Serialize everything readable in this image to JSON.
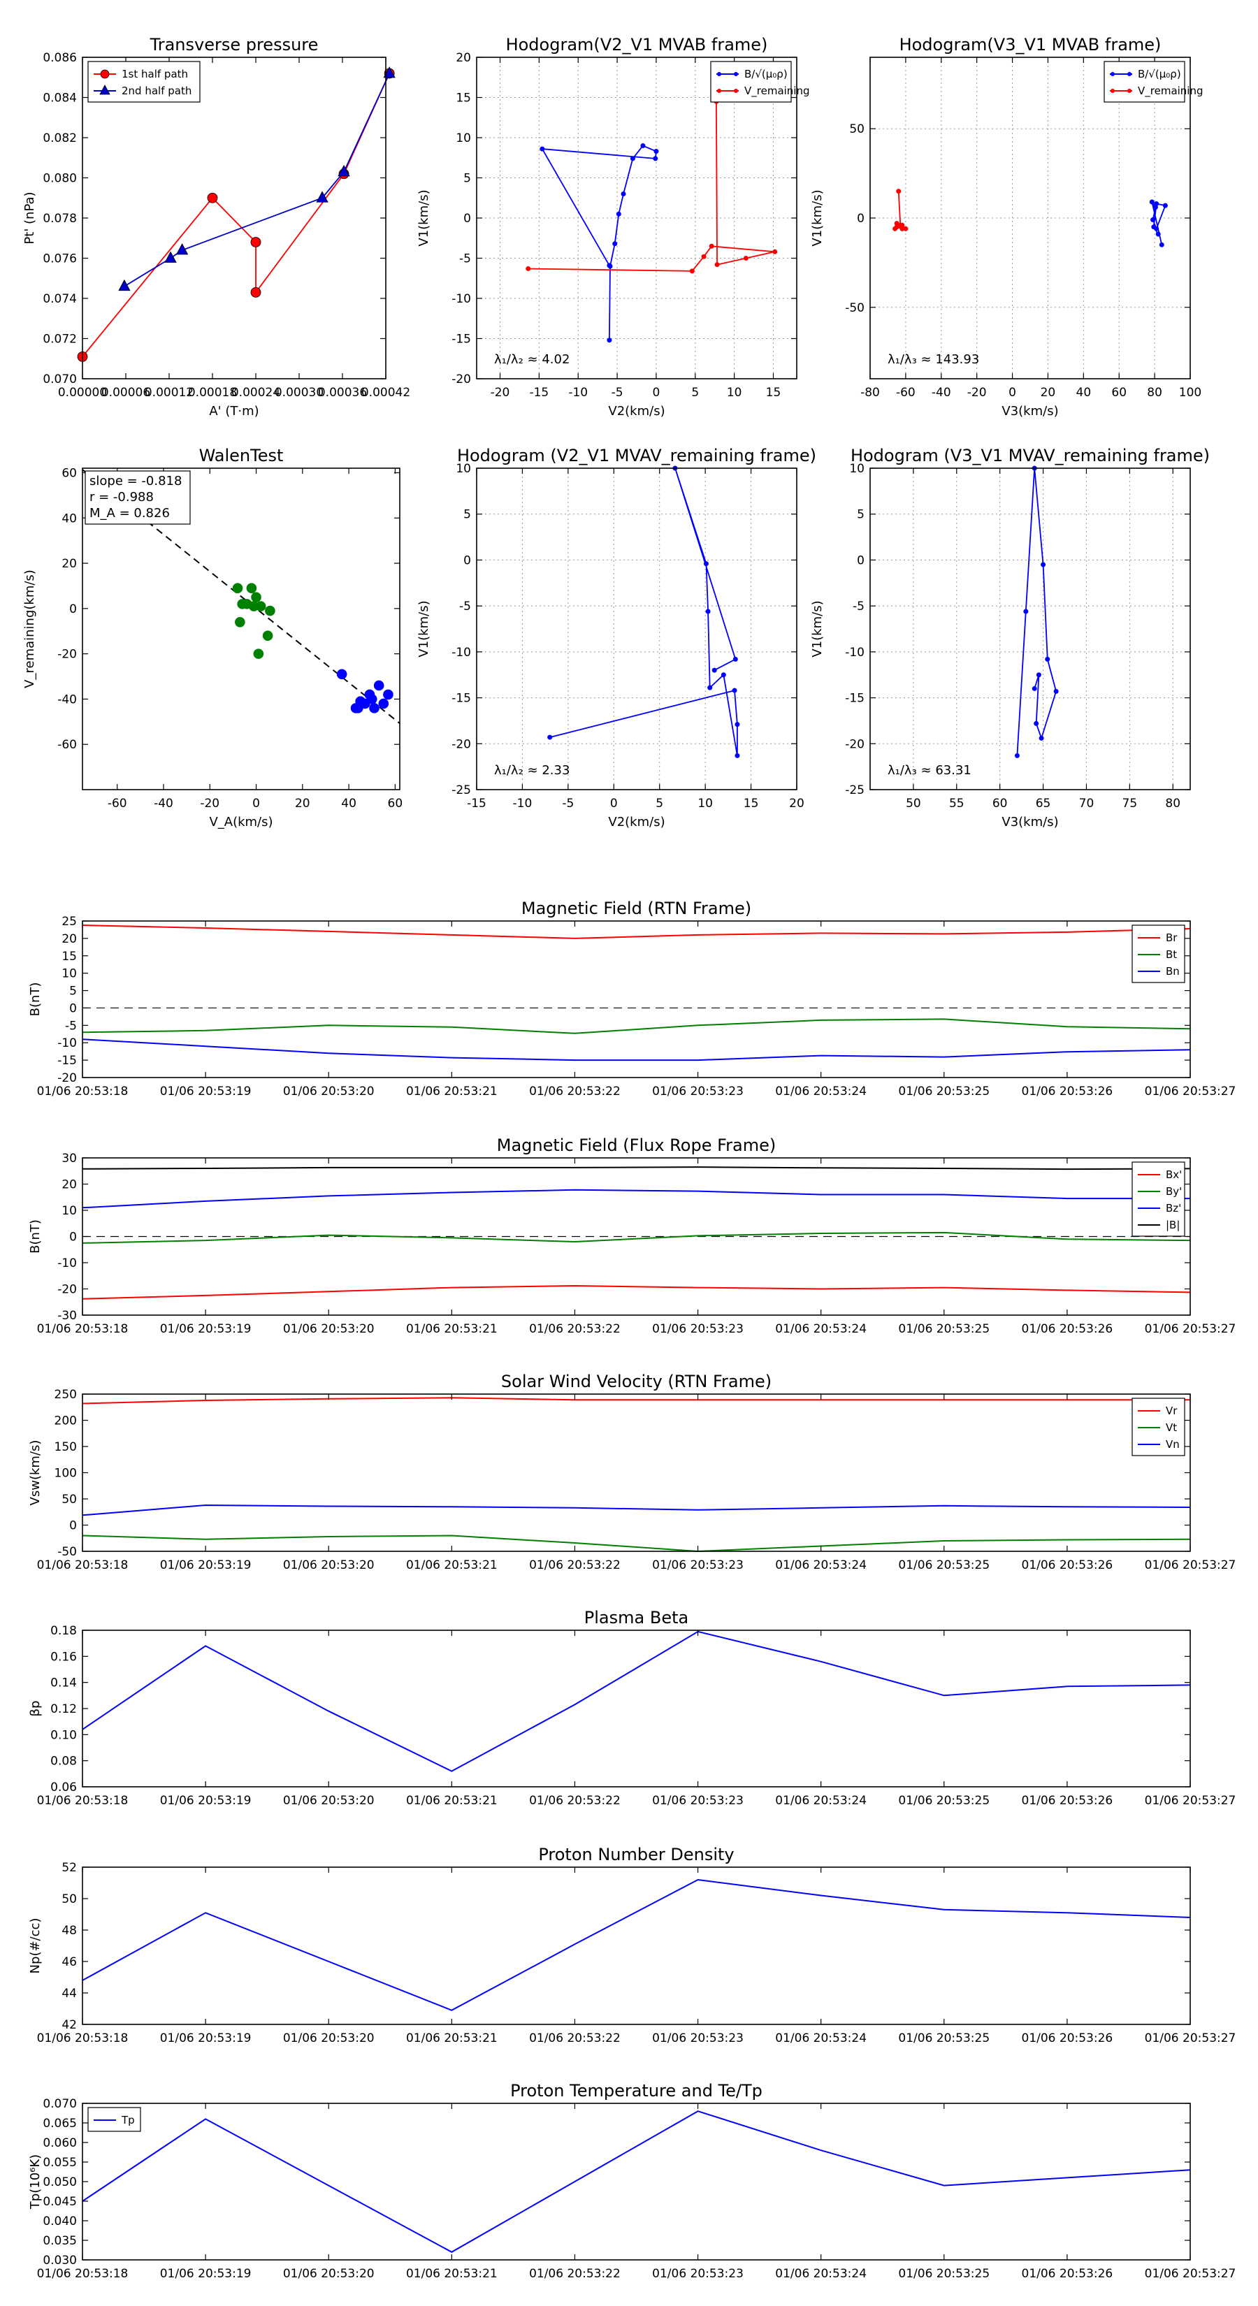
{
  "chart_data": [
    {
      "type": "line",
      "id": "tp",
      "title": "Transverse pressure",
      "xlabel": "A' (T·m)",
      "ylabel": "Pt' (nPa)",
      "xlim": [
        0.0,
        0.00042
      ],
      "ylim": [
        0.07,
        0.086
      ],
      "xticks": [
        0.0,
        6e-05,
        0.00012,
        0.00018,
        0.00024,
        0.0003,
        0.00036,
        0.00042
      ],
      "xtick_labels": [
        "0.00000",
        "0.00006",
        "0.00012",
        "0.00018",
        "0.00024",
        "0.00030",
        "0.00036",
        "0.00042"
      ],
      "yticks": [
        0.07,
        0.072,
        0.074,
        0.076,
        0.078,
        0.08,
        0.082,
        0.084,
        0.086
      ],
      "ytick_labels": [
        "0.070",
        "0.072",
        "0.074",
        "0.076",
        "0.078",
        "0.080",
        "0.082",
        "0.084",
        "0.086"
      ],
      "legend_position": "top-left",
      "series": [
        {
          "name": "1st half path",
          "color": "#ff0000",
          "marker": "circle",
          "x": [
            0.0,
            0.00018,
            0.00024,
            0.00024,
            0.000362,
            0.000425
          ],
          "y": [
            0.0711,
            0.079,
            0.0768,
            0.0743,
            0.0802,
            0.0852
          ]
        },
        {
          "name": "2nd half path",
          "color": "#0000cc",
          "marker": "triangle",
          "x": [
            0.000425,
            0.000362,
            0.000332,
            0.000138,
            0.000122,
            5.8e-05
          ],
          "y": [
            0.0852,
            0.0803,
            0.079,
            0.0764,
            0.076,
            0.0746
          ]
        }
      ]
    },
    {
      "type": "line",
      "id": "h1",
      "title": "Hodogram(V2_V1 MVAB frame)",
      "xlabel": "V2(km/s)",
      "ylabel": "V1(km/s)",
      "xlim": [
        -23,
        18
      ],
      "ylim": [
        -20,
        20
      ],
      "xticks": [
        -20,
        -15,
        -10,
        -5,
        0,
        5,
        10,
        15
      ],
      "yticks": [
        -20,
        -15,
        -10,
        -5,
        0,
        5,
        10,
        15,
        20
      ],
      "legend_position": "top-right",
      "annotation": "λ₁/λ₂ ≈ 4.02",
      "series": [
        {
          "name": "B/√(μ₀ρ)",
          "color": "#0000ff",
          "x": [
            -6.0,
            -5.9,
            -5.3,
            -4.8,
            -4.2,
            -3.0,
            -1.7,
            0.0,
            -0.1,
            -14.6,
            -6.0
          ],
          "y": [
            -15.2,
            -6.0,
            -3.2,
            0.5,
            3.0,
            7.4,
            9.0,
            8.3,
            7.4,
            8.6,
            -5.9
          ]
        },
        {
          "name": "V_remaining",
          "color": "#ff0000",
          "x": [
            -16.4,
            4.6,
            6.1,
            7.1,
            15.2,
            11.5,
            7.8,
            7.7
          ],
          "y": [
            -6.3,
            -6.6,
            -4.8,
            -3.5,
            -4.2,
            -5.0,
            -5.8,
            14.5
          ]
        }
      ]
    },
    {
      "type": "line",
      "id": "h2",
      "title": "Hodogram(V3_V1 MVAB frame)",
      "xlabel": "V3(km/s)",
      "ylabel": "V1(km/s)",
      "xlim": [
        -80,
        100
      ],
      "ylim": [
        -90,
        90
      ],
      "xticks": [
        -80,
        -60,
        -40,
        -20,
        0,
        20,
        40,
        60,
        80,
        100
      ],
      "yticks": [
        -50,
        0,
        50
      ],
      "legend_position": "top-right",
      "annotation": "λ₁/λ₃ ≈ 143.93",
      "series": [
        {
          "name": "B/√(μ₀ρ)",
          "color": "#0000ff",
          "x": [
            84.0,
            78.5,
            80.5,
            79.0,
            81.0,
            86.0,
            81.0,
            79.5,
            82.0
          ],
          "y": [
            -15.0,
            9.0,
            6.0,
            -1.0,
            -6.0,
            7.0,
            8.0,
            -5.0,
            -9.0
          ]
        },
        {
          "name": "V_remaining",
          "color": "#ff0000",
          "x": [
            -64.0,
            -63.0,
            -66.0,
            -65.0,
            -62.0,
            -60.0,
            -65.0,
            -62.0
          ],
          "y": [
            15.0,
            -4.0,
            -6.0,
            -3.0,
            -4.0,
            -6.0,
            -5.0,
            -6.0
          ]
        }
      ]
    },
    {
      "type": "scatter",
      "id": "wt",
      "title": "WalenTest",
      "xlabel": "V_A(km/s)",
      "ylabel": "V_remaining(km/s)",
      "xlim": [
        -75,
        62
      ],
      "ylim": [
        -80,
        62
      ],
      "xticks": [
        -60,
        -40,
        -20,
        0,
        20,
        40,
        60
      ],
      "yticks": [
        -60,
        -40,
        -20,
        0,
        20,
        40,
        60
      ],
      "fit_line": {
        "slope": -0.818,
        "intercept": 0.0
      },
      "annotations": [
        "slope = -0.818",
        "r = -0.988",
        "M_A = 0.826"
      ],
      "series": [
        {
          "name": "green",
          "color": "#008000",
          "x": [
            -8,
            -6,
            -4,
            -2,
            -1,
            0,
            1,
            2,
            5,
            6,
            -7
          ],
          "y": [
            9,
            2,
            2,
            9,
            1,
            5,
            -20,
            1,
            -12,
            -1,
            -6
          ]
        },
        {
          "name": "blue",
          "color": "#0000ff",
          "x": [
            37,
            43,
            45,
            47,
            49,
            51,
            53,
            55,
            57,
            50,
            44
          ],
          "y": [
            -29,
            -44,
            -41,
            -42,
            -38,
            -44,
            -34,
            -42,
            -38,
            -40,
            -44
          ]
        }
      ]
    },
    {
      "type": "line",
      "id": "h3",
      "title": "Hodogram (V2_V1 MVAV_remaining frame)",
      "xlabel": "V2(km/s)",
      "ylabel": "V1(km/s)",
      "xlim": [
        -15,
        20
      ],
      "ylim": [
        -25,
        10
      ],
      "xticks": [
        -15,
        -10,
        -5,
        0,
        5,
        10,
        15,
        20
      ],
      "yticks": [
        -25,
        -20,
        -15,
        -10,
        -5,
        0,
        5,
        10
      ],
      "annotation": "λ₁/λ₂ ≈ 2.33",
      "series": [
        {
          "name": "V_remaining",
          "color": "#0000ff",
          "x": [
            -7.0,
            13.2,
            13.5,
            13.5,
            12.0,
            10.5,
            10.3,
            10.1,
            6.7,
            13.3,
            11.0
          ],
          "y": [
            -19.3,
            -14.2,
            -17.9,
            -21.3,
            -12.5,
            -13.9,
            -5.6,
            -0.4,
            10.0,
            -10.8,
            -12.0
          ]
        }
      ]
    },
    {
      "type": "line",
      "id": "h4",
      "title": "Hodogram (V3_V1 MVAV_remaining frame)",
      "xlabel": "V3(km/s)",
      "ylabel": "V1(km/s)",
      "xlim": [
        45,
        82
      ],
      "ylim": [
        -25,
        10
      ],
      "xticks": [
        50,
        55,
        60,
        65,
        70,
        75,
        80
      ],
      "yticks": [
        -25,
        -20,
        -15,
        -10,
        -5,
        0,
        5,
        10
      ],
      "annotation": "λ₁/λ₃ ≈ 63.31",
      "series": [
        {
          "name": "V_remaining",
          "color": "#0000ff",
          "x": [
            62.0,
            63.0,
            64.0,
            65.0,
            65.5,
            66.5,
            64.8,
            64.2,
            64.5,
            64.0
          ],
          "y": [
            -21.3,
            -5.6,
            10.0,
            -0.5,
            -10.8,
            -14.3,
            -19.4,
            -17.8,
            -12.5,
            -14.0
          ]
        }
      ]
    },
    {
      "type": "line",
      "id": "mf_rtn",
      "title": "Magnetic Field (RTN Frame)",
      "ylabel": "B(nT)",
      "ylim": [
        -20,
        25
      ],
      "yticks": [
        -20,
        -15,
        -10,
        -5,
        0,
        5,
        10,
        15,
        20,
        25
      ],
      "zero_line": true,
      "legend_position": "top-right",
      "x": [
        "01/06 20:53:18",
        "01/06 20:53:19",
        "01/06 20:53:20",
        "01/06 20:53:21",
        "01/06 20:53:22",
        "01/06 20:53:23",
        "01/06 20:53:24",
        "01/06 20:53:25",
        "01/06 20:53:26",
        "01/06 20:53:27"
      ],
      "series": [
        {
          "name": "Br",
          "color": "#ff0000",
          "values": [
            23.8,
            23.0,
            22.0,
            21.0,
            20.0,
            21.0,
            21.5,
            21.3,
            21.8,
            22.8
          ]
        },
        {
          "name": "Bt",
          "color": "#008000",
          "values": [
            -7.0,
            -6.5,
            -5.0,
            -5.5,
            -7.3,
            -5.0,
            -3.5,
            -3.2,
            -5.4,
            -6.0
          ]
        },
        {
          "name": "Bn",
          "color": "#0000ff",
          "values": [
            -9.0,
            -11.0,
            -13.0,
            -14.3,
            -15.0,
            -15.0,
            -13.7,
            -14.1,
            -12.6,
            -12.0
          ]
        }
      ]
    },
    {
      "type": "line",
      "id": "mf_fr",
      "title": "Magnetic Field (Flux Rope Frame)",
      "ylabel": "B(nT)",
      "ylim": [
        -30,
        30
      ],
      "yticks": [
        -30,
        -20,
        -10,
        0,
        10,
        20,
        30
      ],
      "zero_line": true,
      "legend_position": "top-right",
      "x": [
        "01/06 20:53:18",
        "01/06 20:53:19",
        "01/06 20:53:20",
        "01/06 20:53:21",
        "01/06 20:53:22",
        "01/06 20:53:23",
        "01/06 20:53:24",
        "01/06 20:53:25",
        "01/06 20:53:26",
        "01/06 20:53:27"
      ],
      "series": [
        {
          "name": "Bx'",
          "color": "#ff0000",
          "values": [
            -23.8,
            -22.5,
            -21.0,
            -19.5,
            -18.8,
            -19.5,
            -20.0,
            -19.5,
            -20.5,
            -21.3
          ]
        },
        {
          "name": "By'",
          "color": "#008000",
          "values": [
            -2.5,
            -1.5,
            0.5,
            -0.5,
            -2.0,
            0.3,
            1.2,
            1.5,
            -1.0,
            -1.5
          ]
        },
        {
          "name": "Bz'",
          "color": "#0000ff",
          "values": [
            11.0,
            13.5,
            15.5,
            16.8,
            17.8,
            17.3,
            16.0,
            16.0,
            14.5,
            14.5
          ]
        },
        {
          "name": "|B|",
          "color": "#000000",
          "values": [
            25.8,
            26.0,
            26.3,
            26.3,
            26.3,
            26.5,
            26.2,
            26.0,
            25.7,
            25.9
          ]
        }
      ]
    },
    {
      "type": "line",
      "id": "vsw",
      "title": "Solar Wind Velocity (RTN Frame)",
      "ylabel": "Vsw(km/s)",
      "ylim": [
        -50,
        250
      ],
      "yticks": [
        -50,
        0,
        50,
        100,
        150,
        200,
        250
      ],
      "legend_position": "top-right",
      "x": [
        "01/06 20:53:18",
        "01/06 20:53:19",
        "01/06 20:53:20",
        "01/06 20:53:21",
        "01/06 20:53:22",
        "01/06 20:53:23",
        "01/06 20:53:24",
        "01/06 20:53:25",
        "01/06 20:53:26",
        "01/06 20:53:27"
      ],
      "series": [
        {
          "name": "Vr",
          "color": "#ff0000",
          "values": [
            232,
            238,
            241,
            243,
            239,
            239,
            239,
            239,
            239,
            239
          ]
        },
        {
          "name": "Vt",
          "color": "#008000",
          "values": [
            -20,
            -27,
            -22,
            -20,
            -34,
            -50,
            -40,
            -30,
            -28,
            -27
          ]
        },
        {
          "name": "Vn",
          "color": "#0000ff",
          "values": [
            19,
            38,
            36,
            35,
            33,
            29,
            33,
            37,
            35,
            34
          ]
        }
      ]
    },
    {
      "type": "line",
      "id": "beta",
      "title": "Plasma Beta",
      "ylabel": "βp",
      "ylim": [
        0.06,
        0.18
      ],
      "yticks": [
        0.06,
        0.08,
        0.1,
        0.12,
        0.14,
        0.16,
        0.18
      ],
      "ytick_labels": [
        "0.06",
        "0.08",
        "0.10",
        "0.12",
        "0.14",
        "0.16",
        "0.18"
      ],
      "x": [
        "01/06 20:53:18",
        "01/06 20:53:19",
        "01/06 20:53:20",
        "01/06 20:53:21",
        "01/06 20:53:22",
        "01/06 20:53:23",
        "01/06 20:53:24",
        "01/06 20:53:25",
        "01/06 20:53:26",
        "01/06 20:53:27"
      ],
      "series": [
        {
          "name": "beta",
          "color": "#0000ff",
          "values": [
            0.104,
            0.168,
            0.118,
            0.072,
            0.123,
            0.179,
            0.156,
            0.13,
            0.137,
            0.138
          ]
        }
      ]
    },
    {
      "type": "line",
      "id": "np",
      "title": "Proton Number Density",
      "ylabel": "Np(#/cc)",
      "ylim": [
        42,
        52
      ],
      "yticks": [
        42,
        44,
        46,
        48,
        50,
        52
      ],
      "x": [
        "01/06 20:53:18",
        "01/06 20:53:19",
        "01/06 20:53:20",
        "01/06 20:53:21",
        "01/06 20:53:22",
        "01/06 20:53:23",
        "01/06 20:53:24",
        "01/06 20:53:25",
        "01/06 20:53:26",
        "01/06 20:53:27"
      ],
      "series": [
        {
          "name": "Np",
          "color": "#0000ff",
          "values": [
            44.8,
            49.1,
            46.0,
            42.9,
            47.1,
            51.2,
            50.2,
            49.3,
            49.1,
            48.8
          ]
        }
      ]
    },
    {
      "type": "line",
      "id": "tpt",
      "title": "Proton Temperature and Te/Tp",
      "ylabel": "Tp(10⁶K)",
      "ylim": [
        0.03,
        0.07
      ],
      "yticks": [
        0.03,
        0.035,
        0.04,
        0.045,
        0.05,
        0.055,
        0.06,
        0.065,
        0.07
      ],
      "ytick_labels": [
        "0.030",
        "0.035",
        "0.040",
        "0.045",
        "0.050",
        "0.055",
        "0.060",
        "0.065",
        "0.070"
      ],
      "legend_position": "top-left",
      "x": [
        "01/06 20:53:18",
        "01/06 20:53:19",
        "01/06 20:53:20",
        "01/06 20:53:21",
        "01/06 20:53:22",
        "01/06 20:53:23",
        "01/06 20:53:24",
        "01/06 20:53:25",
        "01/06 20:53:26",
        "01/06 20:53:27"
      ],
      "series": [
        {
          "name": "Tp",
          "color": "#0000ff",
          "values": [
            0.045,
            0.066,
            0.049,
            0.032,
            0.05,
            0.068,
            0.058,
            0.049,
            0.051,
            0.053
          ]
        }
      ]
    }
  ]
}
